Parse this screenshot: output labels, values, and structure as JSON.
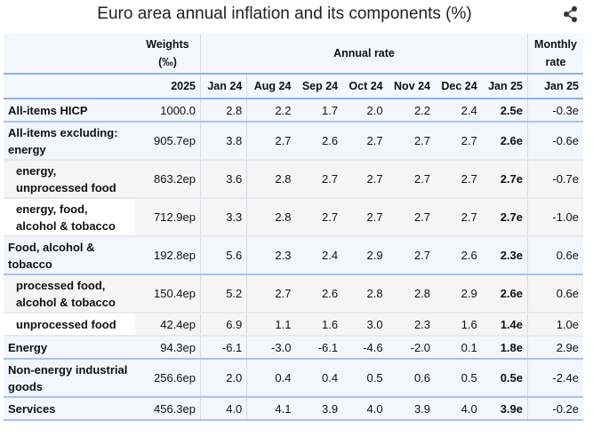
{
  "title": "Euro area annual inflation and its components (%)",
  "icons": {
    "share": "share-icon"
  },
  "headers": {
    "weights": "Weights (‰)",
    "annual": "Annual rate",
    "monthly": "Monthly rate",
    "weights_year": "2025",
    "months": [
      "Jan 24",
      "Aug 24",
      "Sep 24",
      "Oct 24",
      "Nov 24",
      "Dec 24",
      "Jan 25"
    ],
    "monthly_month": "Jan 25"
  },
  "rows": [
    {
      "label": "All-items HICP",
      "weight": "1000.0",
      "annual": [
        "2.8",
        "2.2",
        "1.7",
        "2.0",
        "2.2",
        "2.4",
        "2.5e"
      ],
      "monthly": "-0.3e"
    },
    {
      "label": "All-items excluding: energy",
      "weight": "905.7ep",
      "annual": [
        "3.8",
        "2.7",
        "2.6",
        "2.7",
        "2.7",
        "2.7",
        "2.6e"
      ],
      "monthly": "-0.6e"
    },
    {
      "label": "energy, unprocessed food",
      "weight": "863.2ep",
      "annual": [
        "3.6",
        "2.8",
        "2.7",
        "2.7",
        "2.7",
        "2.7",
        "2.7e"
      ],
      "monthly": "-0.7e"
    },
    {
      "label": "energy, food, alcohol & tobacco",
      "weight": "712.9ep",
      "annual": [
        "3.3",
        "2.8",
        "2.7",
        "2.7",
        "2.7",
        "2.7",
        "2.7e"
      ],
      "monthly": "-1.0e"
    },
    {
      "label": "Food, alcohol & tobacco",
      "weight": "192.8ep",
      "annual": [
        "5.6",
        "2.3",
        "2.4",
        "2.9",
        "2.7",
        "2.6",
        "2.3e"
      ],
      "monthly": "0.6e"
    },
    {
      "label": "processed food, alcohol & tobacco",
      "weight": "150.4ep",
      "annual": [
        "5.2",
        "2.7",
        "2.6",
        "2.8",
        "2.8",
        "2.9",
        "2.6e"
      ],
      "monthly": "0.6e"
    },
    {
      "label": "unprocessed food",
      "weight": "42.4ep",
      "annual": [
        "6.9",
        "1.1",
        "1.6",
        "3.0",
        "2.3",
        "1.6",
        "1.4e"
      ],
      "monthly": "1.0e"
    },
    {
      "label": "Energy",
      "weight": "94.3ep",
      "annual": [
        "-6.1",
        "-3.0",
        "-6.1",
        "-4.6",
        "-2.0",
        "0.1",
        "1.8e"
      ],
      "monthly": "2.9e"
    },
    {
      "label": "Non-energy industrial goods",
      "weight": "256.6ep",
      "annual": [
        "2.0",
        "0.4",
        "0.4",
        "0.5",
        "0.6",
        "0.5",
        "0.5e"
      ],
      "monthly": "-2.4e"
    },
    {
      "label": "Services",
      "weight": "456.3ep",
      "annual": [
        "4.0",
        "4.1",
        "3.9",
        "4.0",
        "3.9",
        "4.0",
        "3.9e"
      ],
      "monthly": "-0.2e"
    }
  ]
}
